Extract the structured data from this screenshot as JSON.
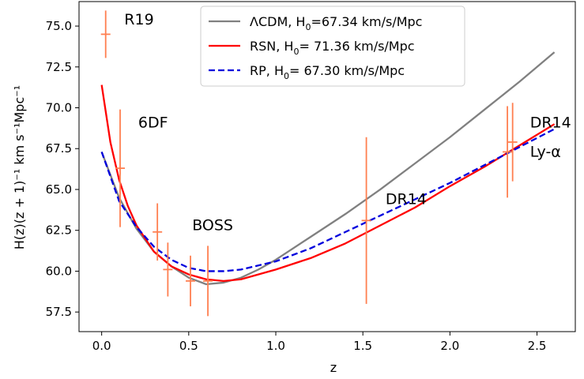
{
  "chart_data": {
    "type": "line",
    "xlabel": "z",
    "ylabel": "H(z)(z + 1)⁻¹ km  s⁻¹Mpc⁻¹",
    "xlim": [
      -0.13,
      2.72
    ],
    "ylim": [
      56.3,
      76.5
    ],
    "x_ticks": [
      0.0,
      0.5,
      1.0,
      1.5,
      2.0,
      2.5
    ],
    "x_tick_labels": [
      "0.0",
      "0.5",
      "1.0",
      "1.5",
      "2.0",
      "2.5"
    ],
    "y_ticks": [
      57.5,
      60.0,
      62.5,
      65.0,
      67.5,
      70.0,
      72.5,
      75.0
    ],
    "y_tick_labels": [
      "57.5",
      "60.0",
      "62.5",
      "65.0",
      "67.5",
      "70.0",
      "72.5",
      "75.0"
    ],
    "grid": false,
    "legend_position": "top-center",
    "series": [
      {
        "name": "ΛCDM, H₀=67.34 km/s/Mpc",
        "label_main": "ΛCDM, H",
        "label_sub": "0",
        "label_rest": "=67.34 km/s/Mpc",
        "color": "#808080",
        "dash": "solid",
        "x": [
          0.0,
          0.1,
          0.2,
          0.3,
          0.4,
          0.5,
          0.6,
          0.7,
          0.8,
          0.9,
          1.0,
          1.2,
          1.4,
          1.6,
          1.8,
          2.0,
          2.2,
          2.4,
          2.6
        ],
        "y": [
          67.3,
          64.5,
          62.6,
          61.2,
          60.3,
          59.6,
          59.2,
          59.3,
          59.6,
          60.1,
          60.7,
          62.1,
          63.5,
          65.0,
          66.6,
          68.2,
          69.9,
          71.6,
          73.4
        ]
      },
      {
        "name": "RSN, H₀= 71.36 km/s/Mpc",
        "label_main": "RSN, H",
        "label_sub": "0",
        "label_rest": "= 71.36 km/s/Mpc",
        "color": "#ff0000",
        "dash": "solid",
        "x": [
          0.0,
          0.05,
          0.1,
          0.15,
          0.2,
          0.3,
          0.4,
          0.5,
          0.6,
          0.7,
          0.8,
          1.0,
          1.2,
          1.4,
          1.6,
          1.8,
          2.0,
          2.2,
          2.4,
          2.6
        ],
        "y": [
          71.4,
          67.9,
          65.6,
          64.0,
          62.8,
          61.2,
          60.3,
          59.8,
          59.5,
          59.4,
          59.5,
          60.1,
          60.8,
          61.7,
          62.8,
          63.9,
          65.2,
          66.4,
          67.7,
          69.0
        ]
      },
      {
        "name": "RP, H₀= 67.30 km/s/Mpc",
        "label_main": "RP, H",
        "label_sub": "0",
        "label_rest": "= 67.30 km/s/Mpc",
        "color": "#0000dd",
        "dash": "dashed",
        "x": [
          0.0,
          0.1,
          0.2,
          0.3,
          0.4,
          0.5,
          0.6,
          0.7,
          0.8,
          1.0,
          1.2,
          1.4,
          1.6,
          1.8,
          2.0,
          2.2,
          2.4,
          2.6
        ],
        "y": [
          67.3,
          64.3,
          62.7,
          61.5,
          60.7,
          60.2,
          60.0,
          60.0,
          60.1,
          60.6,
          61.4,
          62.4,
          63.4,
          64.4,
          65.4,
          66.5,
          67.6,
          68.7
        ]
      }
    ],
    "points": {
      "color": "#ff7f50",
      "items": [
        {
          "x": 0.023,
          "y": 74.5,
          "yerr": 1.45
        },
        {
          "x": 0.106,
          "y": 66.3,
          "yerr": 3.6
        },
        {
          "x": 0.32,
          "y": 62.4,
          "yerr": 1.75
        },
        {
          "x": 0.38,
          "y": 60.1,
          "yerr": 1.65
        },
        {
          "x": 0.51,
          "y": 59.4,
          "yerr": 1.55
        },
        {
          "x": 0.61,
          "y": 59.4,
          "yerr": 2.15
        },
        {
          "x": 1.52,
          "y": 63.1,
          "yerr": 5.1
        },
        {
          "x": 2.33,
          "y": 67.3,
          "yerr": 2.8
        },
        {
          "x": 2.36,
          "y": 67.9,
          "yerr": 2.4
        }
      ]
    },
    "annotations": [
      {
        "text": "R19",
        "x": 0.13,
        "y": 75.1
      },
      {
        "text": "6DF",
        "x": 0.21,
        "y": 68.8
      },
      {
        "text": "BOSS",
        "x": 0.52,
        "y": 62.5
      },
      {
        "text": "DR14",
        "x": 1.63,
        "y": 64.1
      },
      {
        "text": "DR14",
        "x": 2.46,
        "y": 68.8
      },
      {
        "text": "Ly-α",
        "x": 2.46,
        "y": 67.0
      }
    ]
  }
}
